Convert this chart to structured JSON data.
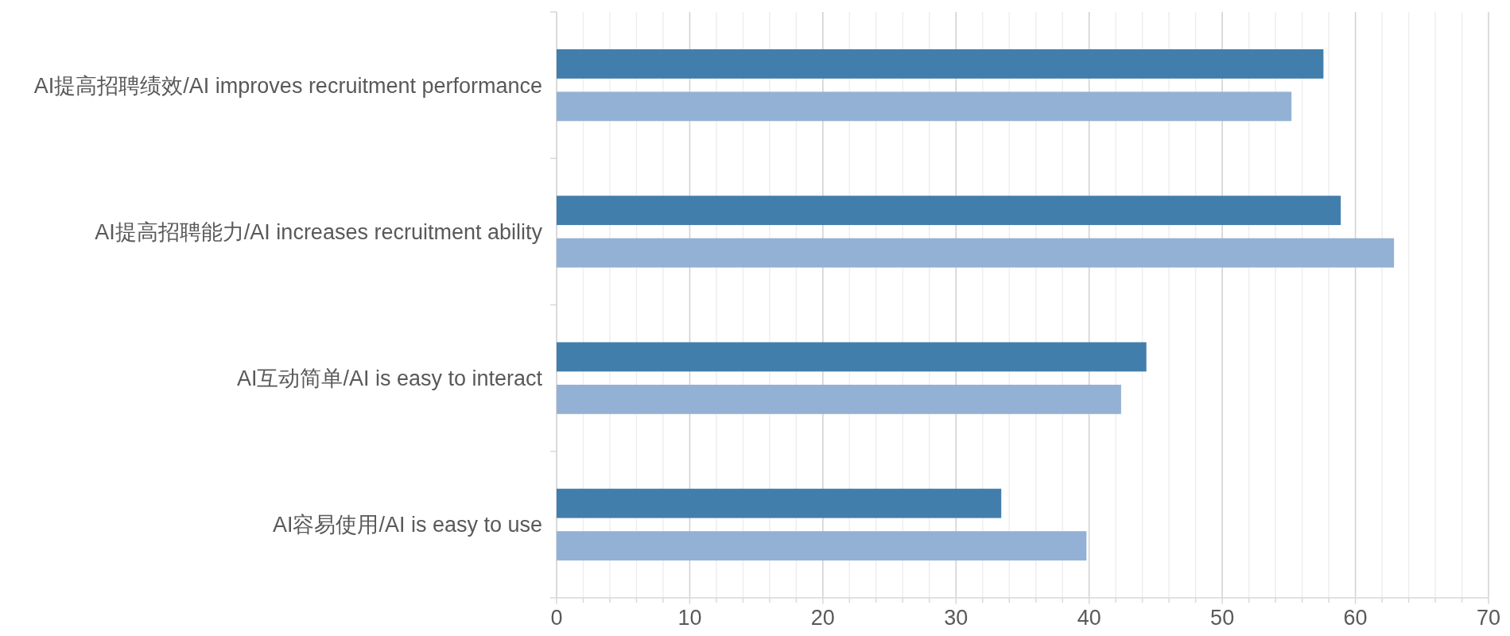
{
  "chart_data": {
    "type": "bar",
    "orientation": "horizontal",
    "categories": [
      "AI提高招聘绩效/AI improves recruitment performance",
      "AI提高招聘能力/AI increases recruitment ability",
      "AI互动简单/AI is easy to interact",
      "AI容易使用/AI is easy to use"
    ],
    "series": [
      {
        "color": "#427eac",
        "values": [
          57.6,
          58.9,
          44.3,
          33.4
        ]
      },
      {
        "color": "#93b1d5",
        "values": [
          55.2,
          62.9,
          42.4,
          39.8
        ]
      }
    ],
    "xlim": [
      0,
      70
    ],
    "xticks": [
      0,
      {
        "value": 2,
        "label": null
      },
      {
        "value": 4,
        "label": null
      },
      {
        "value": 6,
        "label": null
      },
      {
        "value": 8,
        "label": null
      },
      10,
      {
        "value": 12,
        "label": null
      },
      {
        "value": 14,
        "label": null
      },
      {
        "value": 16,
        "label": null
      },
      {
        "value": 18,
        "label": null
      },
      20,
      {
        "value": 22,
        "label": null
      },
      {
        "value": 24,
        "label": null
      },
      {
        "value": 26,
        "label": null
      },
      {
        "value": 28,
        "label": null
      },
      30,
      {
        "value": 32,
        "label": null
      },
      {
        "value": 34,
        "label": null
      },
      {
        "value": 36,
        "label": null
      },
      {
        "value": 38,
        "label": null
      },
      40,
      {
        "value": 42,
        "label": null
      },
      {
        "value": 44,
        "label": null
      },
      {
        "value": 46,
        "label": null
      },
      {
        "value": 48,
        "label": null
      },
      50,
      {
        "value": 52,
        "label": null
      },
      {
        "value": 54,
        "label": null
      },
      {
        "value": 56,
        "label": null
      },
      {
        "value": 58,
        "label": null
      },
      60,
      {
        "value": 62,
        "label": null
      },
      {
        "value": 64,
        "label": null
      },
      {
        "value": 66,
        "label": null
      },
      {
        "value": 68,
        "label": null
      },
      70
    ],
    "grid": true
  }
}
